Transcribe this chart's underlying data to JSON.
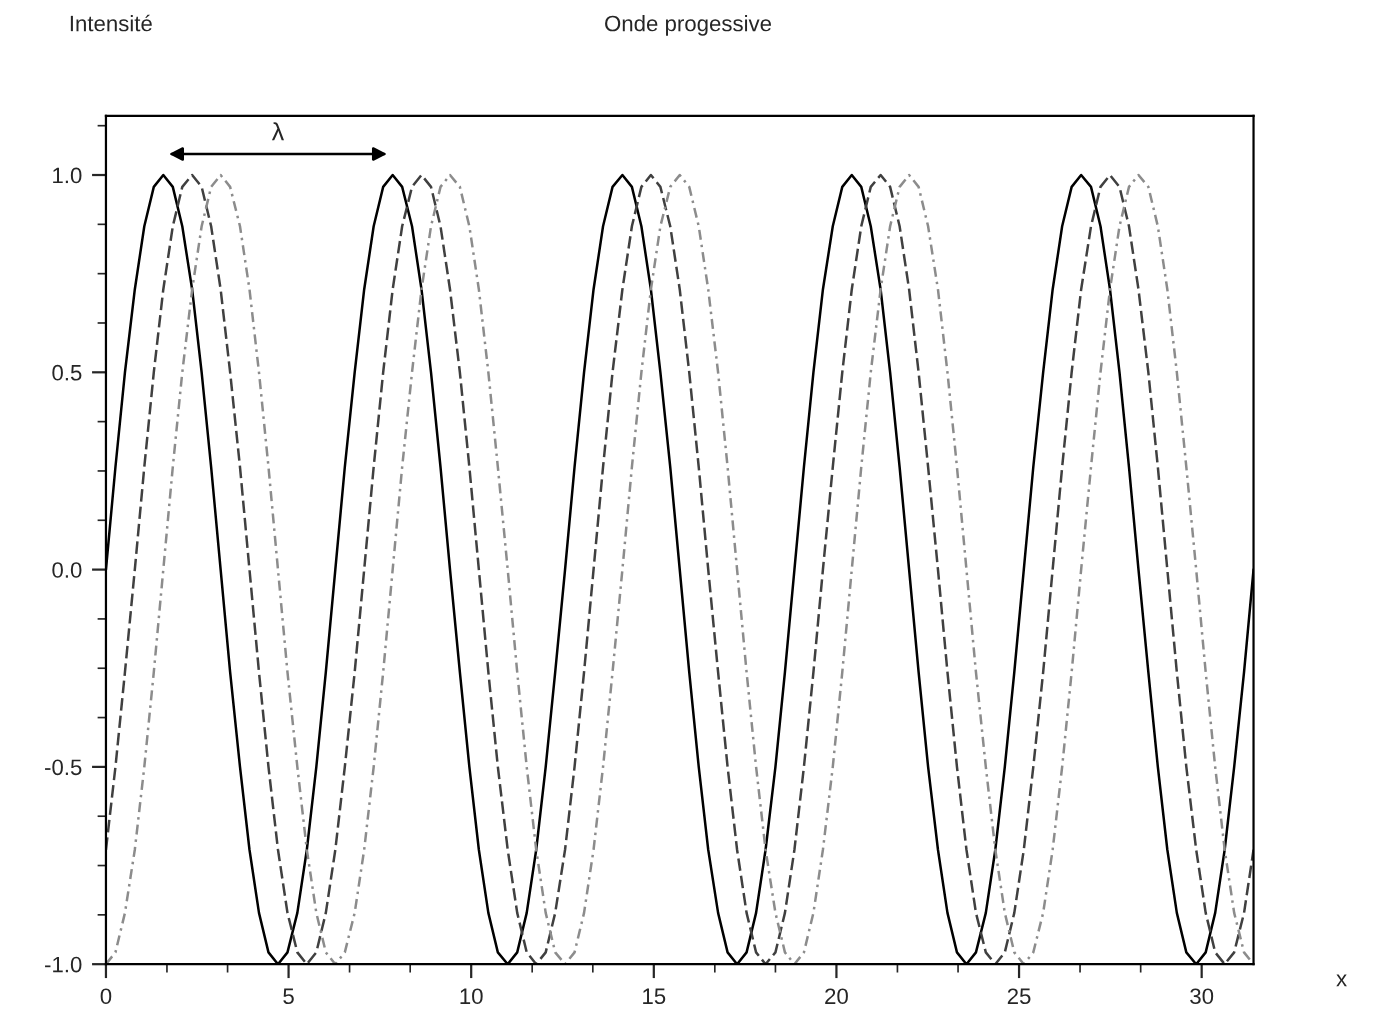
{
  "chart_data": {
    "type": "line",
    "title": "Onde progessive",
    "ylabel": "Intensité",
    "xlabel": "x",
    "x": [
      0,
      0.26,
      0.52,
      0.79,
      1.05,
      1.31,
      1.57,
      1.83,
      2.09,
      2.36,
      2.62,
      2.88,
      3.14,
      3.4,
      3.67,
      3.93,
      4.19,
      4.45,
      4.71,
      4.97,
      5.24,
      5.5,
      5.76,
      6.02,
      6.28,
      6.54,
      6.81,
      7.07,
      7.33,
      7.59,
      7.85,
      8.11,
      8.38,
      8.64,
      8.9,
      9.16,
      9.42,
      9.69,
      9.95,
      10.21,
      10.47,
      10.73,
      11,
      11.26,
      11.52,
      11.78,
      12.04,
      12.3,
      12.57,
      12.83,
      13.09,
      13.35,
      13.61,
      13.87,
      14.14,
      14.4,
      14.66,
      14.92,
      15.18,
      15.45,
      15.71,
      15.97,
      16.23,
      16.49,
      16.76,
      17.02,
      17.28,
      17.54,
      17.8,
      18.06,
      18.33,
      18.59,
      18.85,
      19.11,
      19.37,
      19.63,
      19.9,
      20.16,
      20.42,
      20.68,
      20.94,
      21.21,
      21.47,
      21.73,
      21.99,
      22.25,
      22.51,
      22.78,
      23.04,
      23.3,
      23.56,
      23.82,
      24.09,
      24.35,
      24.61,
      24.87,
      25.13,
      25.39,
      25.66,
      25.92,
      26.18,
      26.44,
      26.7,
      26.97,
      27.23,
      27.49,
      27.75,
      28.01,
      28.27,
      28.54,
      28.8,
      29.06,
      29.32,
      29.58,
      29.85,
      30.11,
      30.37,
      30.63,
      30.89,
      31.16,
      31.42
    ],
    "series": [
      {
        "color": "#000000",
        "line_style": "solid",
        "values": [
          0,
          0.26,
          0.5,
          0.71,
          0.87,
          0.97,
          1,
          0.97,
          0.87,
          0.71,
          0.5,
          0.26,
          0,
          -0.26,
          -0.5,
          -0.71,
          -0.87,
          -0.97,
          -1,
          -0.97,
          -0.87,
          -0.71,
          -0.5,
          -0.26,
          0,
          0.26,
          0.5,
          0.71,
          0.87,
          0.97,
          1,
          0.97,
          0.87,
          0.71,
          0.5,
          0.26,
          0,
          -0.26,
          -0.5,
          -0.71,
          -0.87,
          -0.97,
          -1,
          -0.97,
          -0.87,
          -0.71,
          -0.5,
          -0.26,
          0,
          0.26,
          0.5,
          0.71,
          0.87,
          0.97,
          1,
          0.97,
          0.87,
          0.71,
          0.5,
          0.26,
          0,
          -0.26,
          -0.5,
          -0.71,
          -0.87,
          -0.97,
          -1,
          -0.97,
          -0.87,
          -0.71,
          -0.5,
          -0.26,
          0,
          0.26,
          0.5,
          0.71,
          0.87,
          0.97,
          1,
          0.97,
          0.87,
          0.71,
          0.5,
          0.26,
          0,
          -0.26,
          -0.5,
          -0.71,
          -0.87,
          -0.97,
          -1,
          -0.97,
          -0.87,
          -0.71,
          -0.5,
          -0.26,
          0,
          0.26,
          0.5,
          0.71,
          0.87,
          0.97,
          1,
          0.97,
          0.87,
          0.71,
          0.5,
          0.26,
          0,
          -0.26,
          -0.5,
          -0.71,
          -0.87,
          -0.97,
          -1,
          -0.97,
          -0.87,
          -0.71,
          -0.5,
          -0.26,
          0
        ]
      },
      {
        "color": "#404040",
        "line_style": "dashed",
        "values": [
          -0.71,
          -0.5,
          -0.26,
          0,
          0.26,
          0.5,
          0.71,
          0.87,
          0.97,
          1,
          0.97,
          0.87,
          0.71,
          0.5,
          0.26,
          0,
          -0.26,
          -0.5,
          -0.71,
          -0.87,
          -0.97,
          -1,
          -0.97,
          -0.87,
          -0.71,
          -0.5,
          -0.26,
          0,
          0.26,
          0.5,
          0.71,
          0.87,
          0.97,
          1,
          0.97,
          0.87,
          0.71,
          0.5,
          0.26,
          0,
          -0.26,
          -0.5,
          -0.71,
          -0.87,
          -0.97,
          -1,
          -0.97,
          -0.87,
          -0.71,
          -0.5,
          -0.26,
          0,
          0.26,
          0.5,
          0.71,
          0.87,
          0.97,
          1,
          0.97,
          0.87,
          0.71,
          0.5,
          0.26,
          0,
          -0.26,
          -0.5,
          -0.71,
          -0.87,
          -0.97,
          -1,
          -0.97,
          -0.87,
          -0.71,
          -0.5,
          -0.26,
          0,
          0.26,
          0.5,
          0.71,
          0.87,
          0.97,
          1,
          0.97,
          0.87,
          0.71,
          0.5,
          0.26,
          0,
          -0.26,
          -0.5,
          -0.71,
          -0.87,
          -0.97,
          -1,
          -0.97,
          -0.87,
          -0.71,
          -0.5,
          -0.26,
          0,
          0.26,
          0.5,
          0.71,
          0.87,
          0.97,
          1,
          0.97,
          0.87,
          0.71,
          0.5,
          0.26,
          0,
          -0.26,
          -0.5,
          -0.71,
          -0.87,
          -0.97,
          -1,
          -0.97,
          -0.87,
          -0.71
        ]
      },
      {
        "color": "#8c8c8c",
        "line_style": "dotted",
        "values": [
          -1,
          -0.97,
          -0.87,
          -0.71,
          -0.5,
          -0.26,
          0,
          0.26,
          0.5,
          0.71,
          0.87,
          0.97,
          1,
          0.97,
          0.87,
          0.71,
          0.5,
          0.26,
          0,
          -0.26,
          -0.5,
          -0.71,
          -0.87,
          -0.97,
          -1,
          -0.97,
          -0.87,
          -0.71,
          -0.5,
          -0.26,
          0,
          0.26,
          0.5,
          0.71,
          0.87,
          0.97,
          1,
          0.97,
          0.87,
          0.71,
          0.5,
          0.26,
          0,
          -0.26,
          -0.5,
          -0.71,
          -0.87,
          -0.97,
          -1,
          -0.97,
          -0.87,
          -0.71,
          -0.5,
          -0.26,
          0,
          0.26,
          0.5,
          0.71,
          0.87,
          0.97,
          1,
          0.97,
          0.87,
          0.71,
          0.5,
          0.26,
          0,
          -0.26,
          -0.5,
          -0.71,
          -0.87,
          -0.97,
          -1,
          -0.97,
          -0.87,
          -0.71,
          -0.5,
          -0.26,
          0,
          0.26,
          0.5,
          0.71,
          0.87,
          0.97,
          1,
          0.97,
          0.87,
          0.71,
          0.5,
          0.26,
          0,
          -0.26,
          -0.5,
          -0.71,
          -0.87,
          -0.97,
          -1,
          -0.97,
          -0.87,
          -0.71,
          -0.5,
          -0.26,
          0,
          0.26,
          0.5,
          0.71,
          0.87,
          0.97,
          1,
          0.97,
          0.87,
          0.71,
          0.5,
          0.26,
          0,
          -0.26,
          -0.5,
          -0.71,
          -0.87,
          -0.97,
          -1
        ]
      }
    ],
    "annotations": [
      "λ"
    ],
    "xlim": [
      0,
      31.42
    ],
    "ylim": [
      -1,
      1.15
    ],
    "xticks": [
      0,
      {
        "value": 1.67,
        "label": null
      },
      {
        "value": 3.33,
        "label": null
      },
      5,
      {
        "value": 6.67,
        "label": null
      },
      {
        "value": 8.33,
        "label": null
      },
      10,
      {
        "value": 11.67,
        "label": null
      },
      {
        "value": 13.33,
        "label": null
      },
      15,
      {
        "value": 16.67,
        "label": null
      },
      {
        "value": 18.33,
        "label": null
      },
      20,
      {
        "value": 21.67,
        "label": null
      },
      {
        "value": 23.33,
        "label": null
      },
      25,
      {
        "value": 26.67,
        "label": null
      },
      {
        "value": 28.33,
        "label": null
      },
      30
    ],
    "yticks": [
      {
        "value": -1,
        "label": "-1.0"
      },
      {
        "value": -0.875,
        "label": null
      },
      {
        "value": -0.75,
        "label": null
      },
      {
        "value": -0.625,
        "label": null
      },
      {
        "value": -0.5,
        "label": "-0.5"
      },
      {
        "value": -0.375,
        "label": null
      },
      {
        "value": -0.25,
        "label": null
      },
      {
        "value": -0.125,
        "label": null
      },
      {
        "value": 0,
        "label": "0.0"
      },
      {
        "value": 0.125,
        "label": null
      },
      {
        "value": 0.25,
        "label": null
      },
      {
        "value": 0.375,
        "label": null
      },
      {
        "value": 0.5,
        "label": "0.5"
      },
      {
        "value": 0.625,
        "label": null
      },
      {
        "value": 0.75,
        "label": null
      },
      {
        "value": 0.875,
        "label": null
      },
      {
        "value": 1,
        "label": "1.0"
      },
      {
        "value": 1.125,
        "label": null
      }
    ],
    "grid": false,
    "legend": false
  }
}
